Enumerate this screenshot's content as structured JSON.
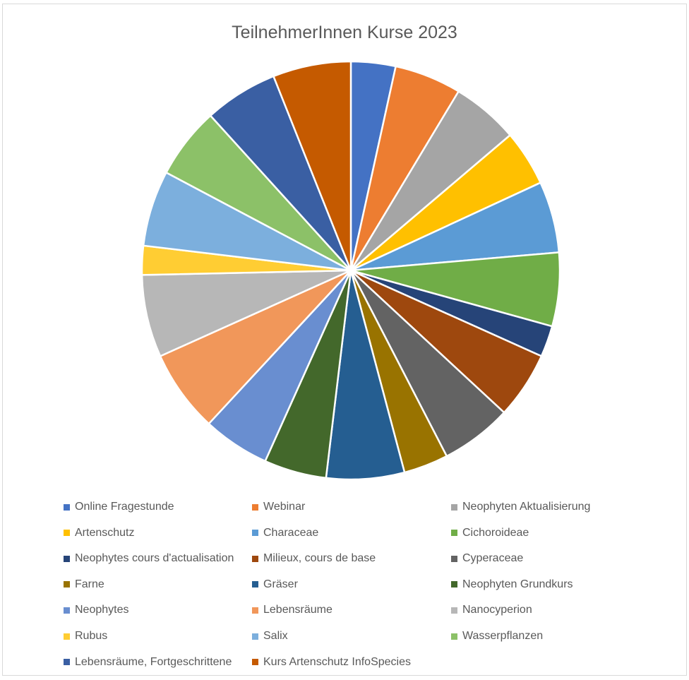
{
  "chart_data": {
    "type": "pie",
    "title": "TeilnehmerInnen Kurse 2023",
    "legend_position": "bottom",
    "series": [
      {
        "label": "Online Fragestunde",
        "value": 20,
        "color": "#4472C4"
      },
      {
        "label": "Webinar",
        "value": 30,
        "color": "#ED7D31"
      },
      {
        "label": "Neophyten Aktualisierung",
        "value": 30,
        "color": "#A5A5A5"
      },
      {
        "label": "Artenschutz",
        "value": 25,
        "color": "#FFC000"
      },
      {
        "label": "Characeae",
        "value": 32,
        "color": "#5B9BD5"
      },
      {
        "label": "Cichoroideae",
        "value": 33,
        "color": "#70AD47"
      },
      {
        "label": "Neophytes cours d'actualisation",
        "value": 14,
        "color": "#264478"
      },
      {
        "label": "Milieux, cours de base",
        "value": 30,
        "color": "#9E480E"
      },
      {
        "label": "Cyperaceae",
        "value": 32,
        "color": "#636363"
      },
      {
        "label": "Farne",
        "value": 20,
        "color": "#997300"
      },
      {
        "label": "Gräser",
        "value": 35,
        "color": "#255E91"
      },
      {
        "label": "Neophyten Grundkurs",
        "value": 28,
        "color": "#43682B"
      },
      {
        "label": "Neophytes",
        "value": 30,
        "color": "#698ED0"
      },
      {
        "label": "Lebensräume",
        "value": 37,
        "color": "#F1975A"
      },
      {
        "label": "Nanocyperion",
        "value": 37,
        "color": "#B7B7B7"
      },
      {
        "label": "Rubus",
        "value": 13,
        "color": "#FFCD33"
      },
      {
        "label": "Salix",
        "value": 34,
        "color": "#7CAFDD"
      },
      {
        "label": "Wasserpflanzen",
        "value": 32,
        "color": "#8CC168"
      },
      {
        "label": "Lebensräume, Fortgeschrittene",
        "value": 33,
        "color": "#3A5FA3"
      },
      {
        "label": "Kurs Artenschutz InfoSpecies",
        "value": 35,
        "color": "#C55A00"
      }
    ]
  }
}
